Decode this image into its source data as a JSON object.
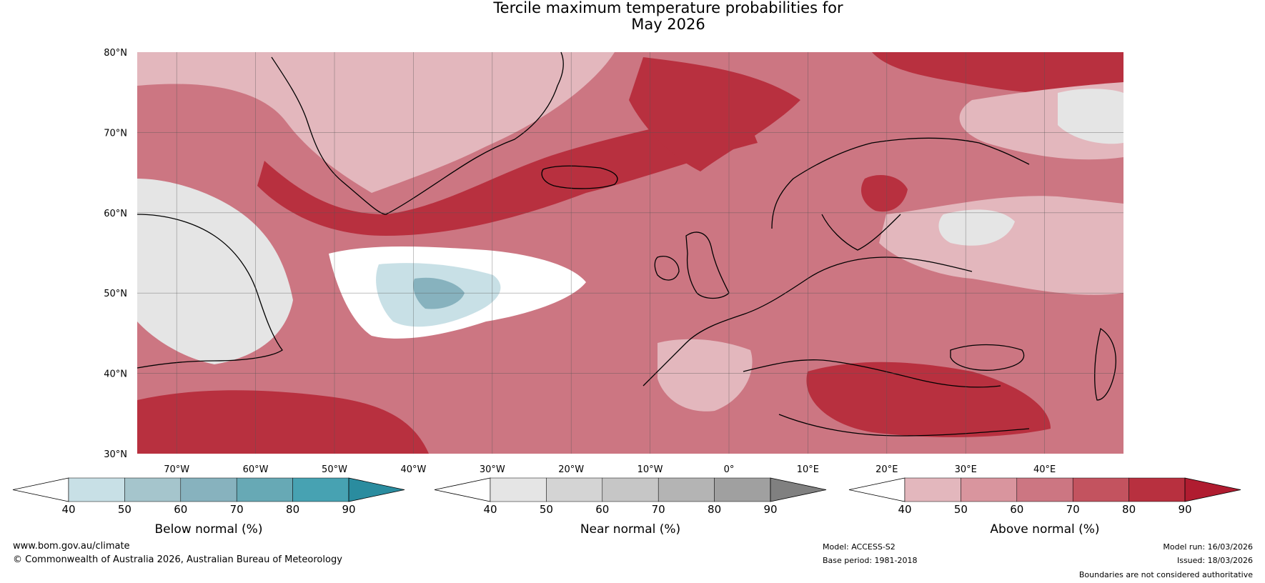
{
  "title": {
    "line1": "Tercile maximum temperature probabilities for",
    "line2": "May 2026"
  },
  "map": {
    "lat_labels": [
      "80°N",
      "70°N",
      "60°N",
      "50°N",
      "40°N",
      "30°N"
    ],
    "lon_labels": [
      "70°W",
      "60°W",
      "50°W",
      "40°W",
      "30°W",
      "20°W",
      "10°W",
      "0°",
      "10°E",
      "20°E",
      "30°E",
      "40°E"
    ],
    "lat_range": [
      30,
      80
    ],
    "lon_range": [
      -75,
      50
    ],
    "lat_values": [
      80,
      70,
      60,
      50,
      40,
      30
    ],
    "lon_values": [
      -70,
      -60,
      -50,
      -40,
      -30,
      -20,
      -10,
      0,
      10,
      20,
      30,
      40
    ]
  },
  "colorbars": [
    {
      "title": "Below normal (%)",
      "ticks": [
        "40",
        "50",
        "60",
        "70",
        "80",
        "90"
      ],
      "colors": [
        "#ffffff",
        "#c8e0e6",
        "#a5c5cc",
        "#87b2be",
        "#67a9b5",
        "#47a2b2",
        "#2a8c9f"
      ]
    },
    {
      "title": "Near normal (%)",
      "ticks": [
        "40",
        "50",
        "60",
        "70",
        "80",
        "90"
      ],
      "colors": [
        "#ffffff",
        "#e5e5e5",
        "#d4d4d4",
        "#c6c6c6",
        "#b4b4b4",
        "#a0a0a0",
        "#808080"
      ]
    },
    {
      "title": "Above normal (%)",
      "ticks": [
        "40",
        "50",
        "60",
        "70",
        "80",
        "90"
      ],
      "colors": [
        "#ffffff",
        "#e3b7bd",
        "#d9959e",
        "#cc7682",
        "#c3535f",
        "#b8303f",
        "#b01c30"
      ]
    }
  ],
  "footer": {
    "website": "www.bom.gov.au/climate",
    "copyright": "© Commonwealth of Australia 2026, Australian Bureau of Meteorology",
    "model": "Model: ACCESS-S2",
    "base_period": "Base period: 1981-2018",
    "model_run": "Model run: 16/03/2026",
    "issued": "Issued: 18/03/2026",
    "disclaimer": "Boundaries are not considered authoritative"
  }
}
